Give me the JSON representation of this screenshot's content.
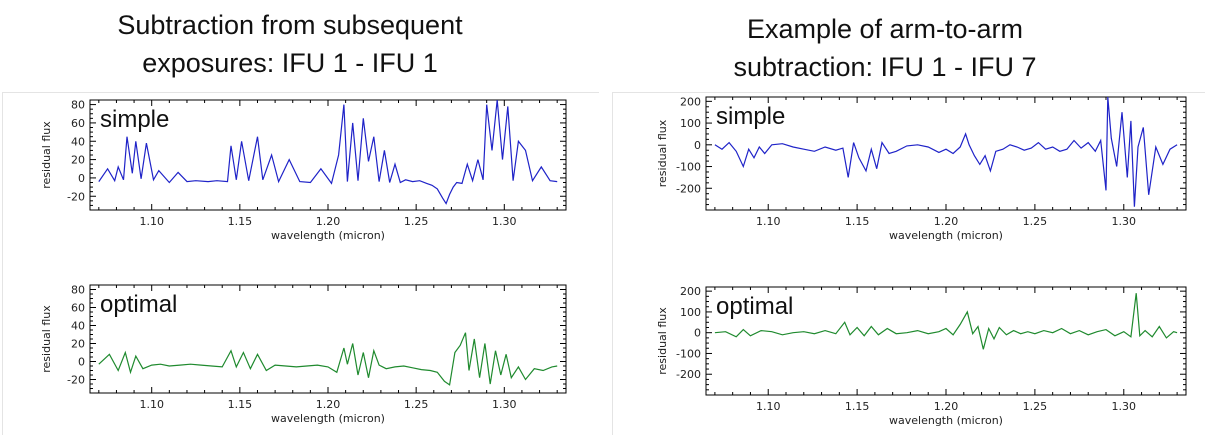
{
  "titles": {
    "left": [
      "Subtraction from subsequent",
      "exposures: IFU 1 -  IFU 1"
    ],
    "right": [
      "Example of arm-to-arm",
      "subtraction: IFU 1 - IFU 7"
    ]
  },
  "chart_data": [
    {
      "type": "line",
      "label": "simple",
      "xlabel": "wavelength (micron)",
      "ylabel": "residual flux",
      "xlim": [
        1.065,
        1.335
      ],
      "ylim": [
        -35,
        85
      ],
      "xticks": [
        "1.10",
        "1.15",
        "1.20",
        "1.25",
        "1.30"
      ],
      "yticks": [
        "80",
        "60",
        "40",
        "20",
        "0",
        "-20"
      ],
      "color": "#1f23c8",
      "series": [
        {
          "x": [
            1.07,
            1.075,
            1.079,
            1.081,
            1.084,
            1.086,
            1.089,
            1.091,
            1.094,
            1.097,
            1.101,
            1.104,
            1.11,
            1.115,
            1.12,
            1.125,
            1.132,
            1.137,
            1.143,
            1.145,
            1.148,
            1.151,
            1.155,
            1.16,
            1.163,
            1.168,
            1.172,
            1.178,
            1.184,
            1.19,
            1.196,
            1.202,
            1.206,
            1.209,
            1.211,
            1.214,
            1.217,
            1.22,
            1.223,
            1.226,
            1.229,
            1.232,
            1.235,
            1.238,
            1.241,
            1.244,
            1.248,
            1.252,
            1.256,
            1.259,
            1.262,
            1.265,
            1.267,
            1.269,
            1.271,
            1.273,
            1.276,
            1.279,
            1.282,
            1.285,
            1.288,
            1.29,
            1.293,
            1.296,
            1.299,
            1.302,
            1.305,
            1.308,
            1.312,
            1.316,
            1.321,
            1.326,
            1.33
          ],
          "y": [
            -4,
            10,
            -3,
            12,
            -2,
            45,
            5,
            40,
            -1,
            38,
            -2,
            8,
            -5,
            6,
            -4,
            -3,
            -4,
            -3,
            -4,
            35,
            -2,
            40,
            -3,
            45,
            -2,
            25,
            -4,
            20,
            -4,
            -5,
            10,
            -6,
            25,
            80,
            -4,
            60,
            -3,
            65,
            18,
            45,
            -4,
            30,
            -5,
            15,
            -5,
            -2,
            -4,
            -3,
            -6,
            -8,
            -12,
            -22,
            -28,
            -18,
            -10,
            -5,
            -6,
            15,
            -3,
            20,
            -2,
            80,
            30,
            85,
            20,
            78,
            -3,
            40,
            30,
            -3,
            12,
            -3,
            -4
          ]
        }
      ]
    },
    {
      "type": "line",
      "label": "optimal",
      "xlabel": "wavelength (micron)",
      "ylabel": "residual flux",
      "xlim": [
        1.065,
        1.335
      ],
      "ylim": [
        -35,
        85
      ],
      "xticks": [
        "1.10",
        "1.15",
        "1.20",
        "1.25",
        "1.30"
      ],
      "yticks": [
        "80",
        "60",
        "40",
        "20",
        "0",
        "-20"
      ],
      "color": "#1f8a2e",
      "series": [
        {
          "x": [
            1.07,
            1.076,
            1.081,
            1.085,
            1.088,
            1.091,
            1.095,
            1.1,
            1.105,
            1.11,
            1.116,
            1.122,
            1.128,
            1.134,
            1.14,
            1.145,
            1.148,
            1.152,
            1.156,
            1.16,
            1.165,
            1.17,
            1.176,
            1.182,
            1.188,
            1.194,
            1.2,
            1.205,
            1.209,
            1.211,
            1.214,
            1.217,
            1.22,
            1.223,
            1.226,
            1.229,
            1.233,
            1.238,
            1.243,
            1.248,
            1.253,
            1.258,
            1.262,
            1.266,
            1.269,
            1.272,
            1.275,
            1.278,
            1.28,
            1.283,
            1.286,
            1.289,
            1.292,
            1.295,
            1.298,
            1.301,
            1.304,
            1.308,
            1.312,
            1.317,
            1.322,
            1.327,
            1.33
          ],
          "y": [
            -3,
            8,
            -10,
            10,
            -12,
            6,
            -8,
            -4,
            -3,
            -5,
            -4,
            -3,
            -4,
            -5,
            -6,
            12,
            -6,
            10,
            -8,
            8,
            -10,
            -4,
            -5,
            -6,
            -5,
            -4,
            -6,
            -12,
            15,
            -3,
            20,
            -15,
            10,
            -18,
            12,
            -4,
            -8,
            -6,
            -5,
            -7,
            -9,
            -10,
            -12,
            -22,
            -26,
            10,
            18,
            32,
            -10,
            25,
            -18,
            20,
            -25,
            12,
            -15,
            8,
            -18,
            -6,
            -20,
            -8,
            -10,
            -6,
            -5
          ]
        }
      ]
    },
    {
      "type": "line",
      "label": "simple",
      "xlabel": "wavelength (micron)",
      "ylabel": "residual flux",
      "xlim": [
        1.065,
        1.335
      ],
      "ylim": [
        -300,
        220
      ],
      "xticks": [
        "1.10",
        "1.15",
        "1.20",
        "1.25",
        "1.30"
      ],
      "yticks": [
        "200",
        "100",
        "0",
        "-100",
        "-200"
      ],
      "color": "#1f23c8",
      "series": [
        {
          "x": [
            1.07,
            1.074,
            1.078,
            1.082,
            1.086,
            1.089,
            1.092,
            1.095,
            1.098,
            1.102,
            1.108,
            1.114,
            1.12,
            1.126,
            1.132,
            1.138,
            1.142,
            1.145,
            1.148,
            1.151,
            1.155,
            1.158,
            1.161,
            1.164,
            1.168,
            1.172,
            1.178,
            1.184,
            1.19,
            1.196,
            1.2,
            1.204,
            1.208,
            1.211,
            1.213,
            1.216,
            1.219,
            1.222,
            1.225,
            1.228,
            1.232,
            1.236,
            1.24,
            1.244,
            1.248,
            1.252,
            1.256,
            1.26,
            1.264,
            1.268,
            1.272,
            1.276,
            1.28,
            1.284,
            1.287,
            1.29,
            1.291,
            1.293,
            1.296,
            1.299,
            1.302,
            1.304,
            1.306,
            1.308,
            1.311,
            1.314,
            1.318,
            1.322,
            1.326,
            1.33
          ],
          "y": [
            0,
            -20,
            10,
            -30,
            -100,
            -20,
            -60,
            -10,
            -40,
            0,
            5,
            -10,
            -20,
            -30,
            -10,
            -25,
            -15,
            -150,
            10,
            -60,
            -120,
            -20,
            -110,
            10,
            -40,
            -30,
            -5,
            0,
            -10,
            -35,
            -20,
            -40,
            -10,
            50,
            0,
            -50,
            -90,
            -50,
            -120,
            -30,
            -20,
            0,
            -10,
            -25,
            -15,
            10,
            -20,
            -10,
            -30,
            -20,
            20,
            -15,
            10,
            -30,
            20,
            -210,
            220,
            30,
            -100,
            150,
            -150,
            110,
            -285,
            -10,
            80,
            -230,
            -10,
            -90,
            -20,
            0
          ]
        }
      ]
    },
    {
      "type": "line",
      "label": "optimal",
      "xlabel": "wavelength (micron)",
      "ylabel": "residual flux",
      "xlim": [
        1.065,
        1.335
      ],
      "ylim": [
        -300,
        220
      ],
      "xticks": [
        "1.10",
        "1.15",
        "1.20",
        "1.25",
        "1.30"
      ],
      "yticks": [
        "200",
        "100",
        "0",
        "-100",
        "-200"
      ],
      "color": "#1f8a2e",
      "series": [
        {
          "x": [
            1.07,
            1.076,
            1.082,
            1.086,
            1.09,
            1.096,
            1.102,
            1.108,
            1.114,
            1.12,
            1.126,
            1.132,
            1.138,
            1.143,
            1.146,
            1.15,
            1.154,
            1.158,
            1.162,
            1.167,
            1.172,
            1.178,
            1.184,
            1.19,
            1.196,
            1.2,
            1.204,
            1.208,
            1.212,
            1.215,
            1.218,
            1.221,
            1.224,
            1.227,
            1.23,
            1.234,
            1.238,
            1.242,
            1.246,
            1.25,
            1.255,
            1.26,
            1.265,
            1.27,
            1.275,
            1.28,
            1.285,
            1.29,
            1.295,
            1.3,
            1.304,
            1.307,
            1.309,
            1.312,
            1.316,
            1.32,
            1.324,
            1.328,
            1.33
          ],
          "y": [
            0,
            5,
            -20,
            15,
            -15,
            10,
            5,
            -10,
            0,
            5,
            -5,
            10,
            -5,
            50,
            -10,
            25,
            -15,
            30,
            -10,
            20,
            -5,
            0,
            10,
            -5,
            5,
            20,
            -10,
            40,
            100,
            -5,
            30,
            -80,
            20,
            -30,
            25,
            -10,
            10,
            -5,
            5,
            -5,
            10,
            0,
            20,
            -5,
            10,
            -10,
            5,
            15,
            -15,
            5,
            -20,
            190,
            -15,
            10,
            -20,
            30,
            -25,
            5,
            0
          ]
        }
      ]
    }
  ],
  "panels": [
    {
      "label": "simple",
      "xlabel": "wavelength (micron)",
      "ylabel": "residual flux"
    },
    {
      "label": "optimal",
      "xlabel": "wavelength (micron)",
      "ylabel": "residual flux"
    },
    {
      "label": "simple",
      "xlabel": "wavelength (micron)",
      "ylabel": "residual flux"
    },
    {
      "label": "optimal",
      "xlabel": "wavelength (micron)",
      "ylabel": "residual flux"
    }
  ]
}
